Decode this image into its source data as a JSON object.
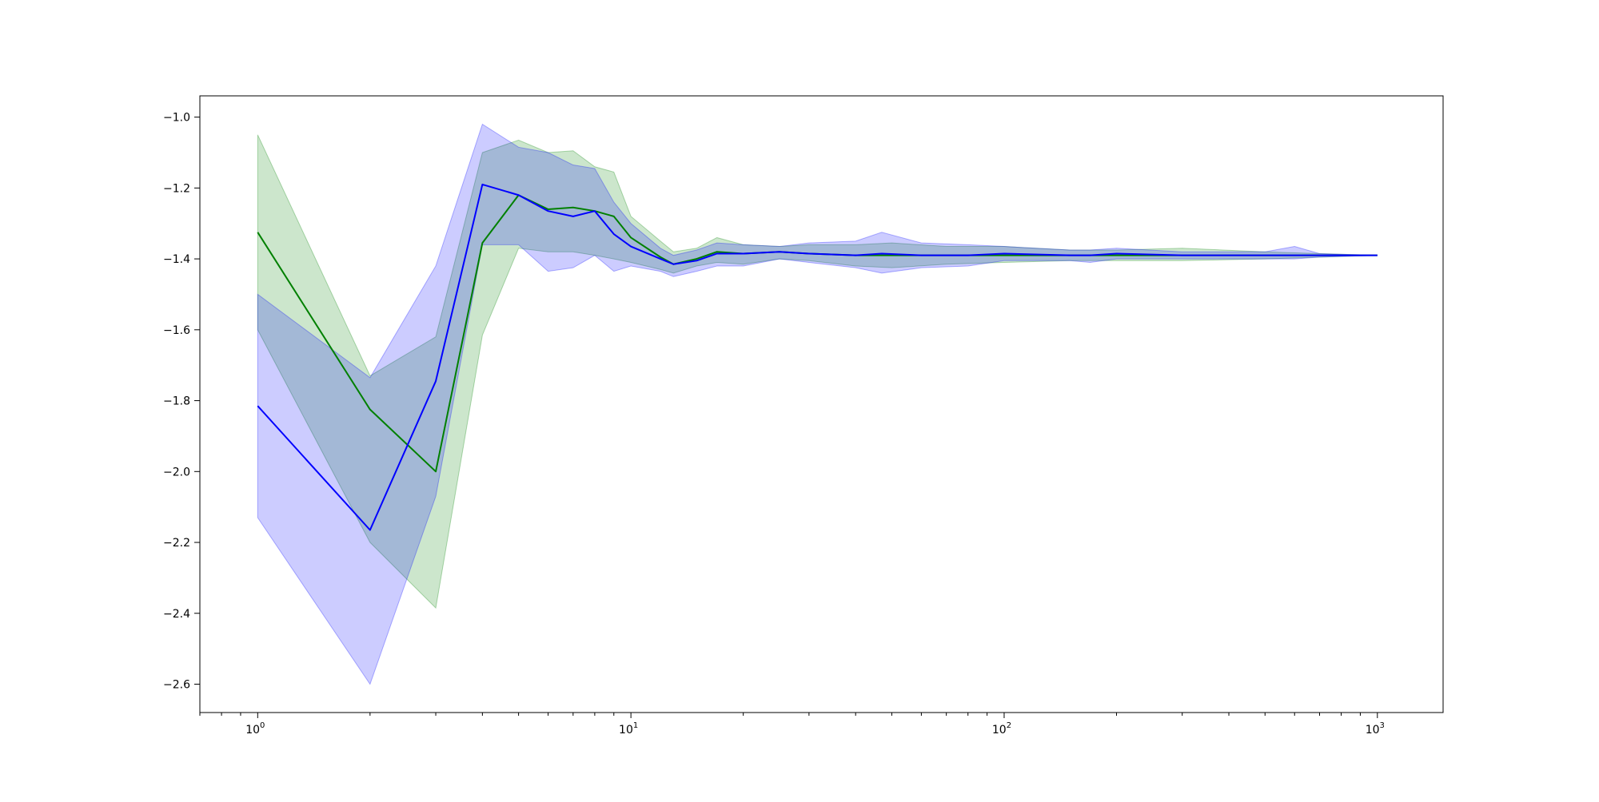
{
  "chart_data": {
    "type": "line",
    "title": "",
    "xlabel": "",
    "ylabel": "",
    "xscale": "log",
    "xlim": [
      0.7,
      1500
    ],
    "ylim": [
      -2.68,
      -0.94
    ],
    "grid": false,
    "x_ticks": [
      {
        "value": 1,
        "base": "10",
        "exp": "0"
      },
      {
        "value": 10,
        "base": "10",
        "exp": "1"
      },
      {
        "value": 100,
        "base": "10",
        "exp": "2"
      },
      {
        "value": 1000,
        "base": "10",
        "exp": "3"
      }
    ],
    "y_ticks": [
      {
        "value": -1.0,
        "label": "−1.0"
      },
      {
        "value": -1.2,
        "label": "−1.2"
      },
      {
        "value": -1.4,
        "label": "−1.4"
      },
      {
        "value": -1.6,
        "label": "−1.6"
      },
      {
        "value": -1.8,
        "label": "−1.8"
      },
      {
        "value": -2.0,
        "label": "−2.0"
      },
      {
        "value": -2.2,
        "label": "−2.2"
      },
      {
        "value": -2.4,
        "label": "−2.4"
      },
      {
        "value": -2.6,
        "label": "−2.6"
      }
    ],
    "series": [
      {
        "color": "#008000",
        "band_color": "#008000",
        "band_opacity": 0.2,
        "points": [
          [
            1,
            -1.325,
            -1.6,
            -1.05
          ],
          [
            2,
            -1.825,
            -2.2,
            -1.73
          ],
          [
            3,
            -2.0,
            -2.385,
            -1.62
          ],
          [
            4,
            -1.355,
            -1.615,
            -1.1
          ],
          [
            5,
            -1.22,
            -1.37,
            -1.065
          ],
          [
            6,
            -1.26,
            -1.38,
            -1.1
          ],
          [
            7,
            -1.255,
            -1.38,
            -1.095
          ],
          [
            8,
            -1.265,
            -1.39,
            -1.14
          ],
          [
            9,
            -1.28,
            -1.4,
            -1.155
          ],
          [
            10,
            -1.34,
            -1.41,
            -1.28
          ],
          [
            12,
            -1.395,
            -1.43,
            -1.35
          ],
          [
            13,
            -1.415,
            -1.44,
            -1.38
          ],
          [
            15,
            -1.4,
            -1.42,
            -1.37
          ],
          [
            17,
            -1.38,
            -1.41,
            -1.34
          ],
          [
            20,
            -1.385,
            -1.415,
            -1.36
          ],
          [
            25,
            -1.38,
            -1.4,
            -1.365
          ],
          [
            30,
            -1.385,
            -1.405,
            -1.36
          ],
          [
            40,
            -1.39,
            -1.42,
            -1.36
          ],
          [
            50,
            -1.39,
            -1.425,
            -1.355
          ],
          [
            70,
            -1.39,
            -1.415,
            -1.365
          ],
          [
            100,
            -1.39,
            -1.41,
            -1.365
          ],
          [
            150,
            -1.39,
            -1.405,
            -1.375
          ],
          [
            200,
            -1.39,
            -1.405,
            -1.375
          ],
          [
            300,
            -1.39,
            -1.405,
            -1.37
          ],
          [
            500,
            -1.39,
            -1.4,
            -1.38
          ],
          [
            700,
            -1.39,
            -1.395,
            -1.385
          ],
          [
            1000,
            -1.39,
            -1.39,
            -1.39
          ]
        ]
      },
      {
        "color": "#0000ff",
        "band_color": "#0000ff",
        "band_opacity": 0.2,
        "points": [
          [
            1,
            -1.815,
            -2.13,
            -1.5
          ],
          [
            2,
            -2.165,
            -2.6,
            -1.735
          ],
          [
            3,
            -1.745,
            -2.07,
            -1.42
          ],
          [
            4,
            -1.19,
            -1.36,
            -1.02
          ],
          [
            5,
            -1.22,
            -1.36,
            -1.085
          ],
          [
            6,
            -1.265,
            -1.435,
            -1.1
          ],
          [
            7,
            -1.28,
            -1.425,
            -1.135
          ],
          [
            8,
            -1.265,
            -1.39,
            -1.145
          ],
          [
            9,
            -1.33,
            -1.435,
            -1.24
          ],
          [
            10,
            -1.365,
            -1.42,
            -1.3
          ],
          [
            12,
            -1.4,
            -1.435,
            -1.37
          ],
          [
            13,
            -1.415,
            -1.45,
            -1.39
          ],
          [
            15,
            -1.405,
            -1.435,
            -1.375
          ],
          [
            17,
            -1.385,
            -1.42,
            -1.355
          ],
          [
            20,
            -1.385,
            -1.42,
            -1.36
          ],
          [
            25,
            -1.38,
            -1.4,
            -1.365
          ],
          [
            30,
            -1.385,
            -1.41,
            -1.355
          ],
          [
            40,
            -1.39,
            -1.425,
            -1.35
          ],
          [
            47,
            -1.385,
            -1.44,
            -1.325
          ],
          [
            60,
            -1.39,
            -1.425,
            -1.355
          ],
          [
            80,
            -1.39,
            -1.42,
            -1.36
          ],
          [
            100,
            -1.385,
            -1.405,
            -1.365
          ],
          [
            150,
            -1.39,
            -1.405,
            -1.375
          ],
          [
            170,
            -1.39,
            -1.41,
            -1.375
          ],
          [
            200,
            -1.385,
            -1.4,
            -1.37
          ],
          [
            300,
            -1.39,
            -1.4,
            -1.38
          ],
          [
            500,
            -1.39,
            -1.4,
            -1.38
          ],
          [
            600,
            -1.39,
            -1.4,
            -1.365
          ],
          [
            700,
            -1.39,
            -1.395,
            -1.385
          ],
          [
            1000,
            -1.39,
            -1.39,
            -1.39
          ]
        ]
      }
    ]
  }
}
